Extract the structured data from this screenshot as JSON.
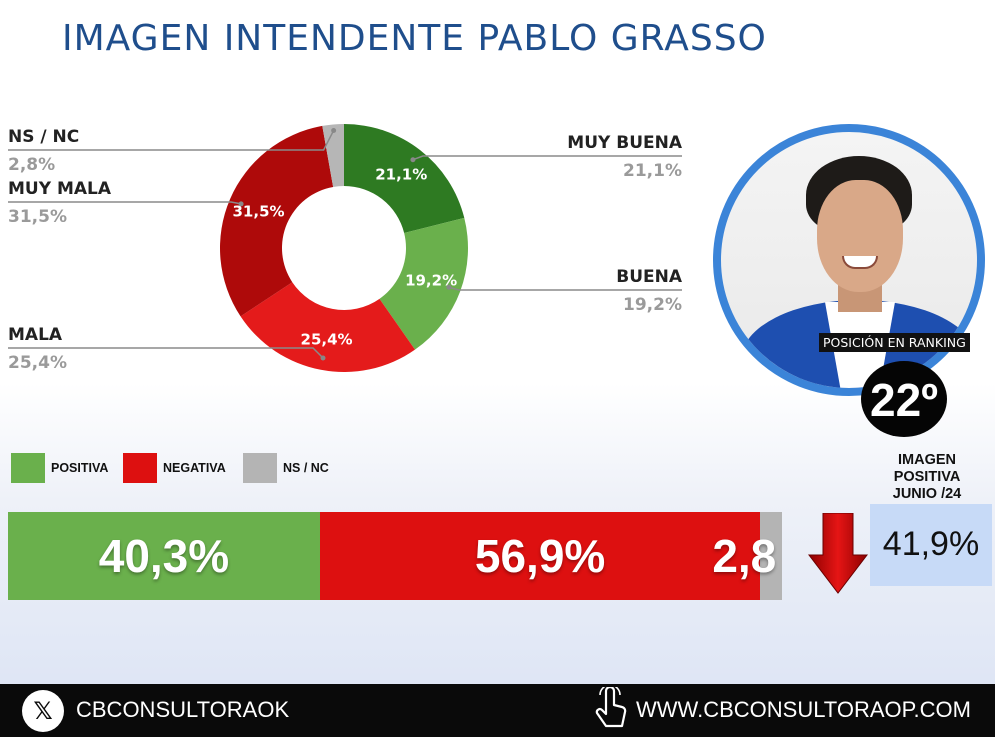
{
  "title": "IMAGEN INTENDENTE PABLO GRASSO",
  "chart_data": [
    {
      "type": "pie",
      "donut": true,
      "categories": [
        "MUY BUENA",
        "BUENA",
        "MALA",
        "MUY MALA",
        "NS / NC"
      ],
      "values": [
        21.1,
        19.2,
        25.4,
        31.5,
        2.8
      ],
      "value_labels": [
        "21,1%",
        "19,2%",
        "25,4%",
        "31,5%",
        "2,8%"
      ],
      "side_values": [
        "21,1%",
        "19,2%",
        "25,4%",
        "31,5%",
        "2,8%"
      ],
      "colors": [
        "#2e7a22",
        "#6ab04c",
        "#e41b1b",
        "#ae0a0a",
        "#b6b6b6"
      ]
    },
    {
      "type": "bar",
      "stacked": true,
      "orientation": "horizontal",
      "categories": [
        "POSITIVA",
        "NEGATIVA",
        "NS / NC"
      ],
      "values": [
        40.3,
        56.9,
        2.8
      ],
      "value_labels": [
        "40,3%",
        "56,9%",
        "2,8"
      ],
      "colors": [
        "#6ab04c",
        "#dd1010",
        "#b4b4b4"
      ]
    }
  ],
  "legend": [
    {
      "label": "POSITIVA",
      "color": "#6ab04c"
    },
    {
      "label": "NEGATIVA",
      "color": "#dd1010"
    },
    {
      "label": "NS / NC",
      "color": "#b4b4b4"
    }
  ],
  "ranking": {
    "label": "POSICIÓN EN RANKING",
    "position": "22º"
  },
  "june": {
    "label": "IMAGEN POSITIVA JUNIO /24",
    "value": "41,9%"
  },
  "footer": {
    "x_handle": "CBCONSULTORAOK",
    "website": "WWW.CBCONSULTORAOP.COM"
  },
  "icons": {
    "x_logo": "x-logo-icon",
    "pointer": "pointer-hand-icon",
    "trend": "down-arrow-icon"
  }
}
